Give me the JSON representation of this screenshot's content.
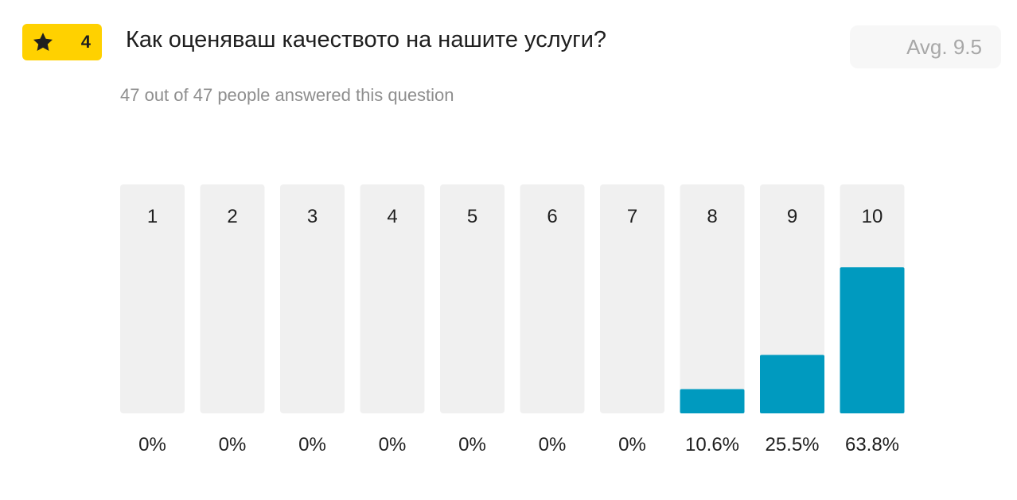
{
  "question": {
    "number": "4",
    "title": "Как оценяваш качеството на нашите услуги?",
    "avg_label": "Avg. 9.5",
    "answered_text": "47 out of 47 people answered this question"
  },
  "colors": {
    "badge": "#FFD100",
    "bar_fill": "#009ABF",
    "bar_track": "#F0F0F0"
  },
  "icons": {
    "badge_icon": "star-icon"
  },
  "chart_data": {
    "type": "bar",
    "categories": [
      "1",
      "2",
      "3",
      "4",
      "5",
      "6",
      "7",
      "8",
      "9",
      "10"
    ],
    "values": [
      0,
      0,
      0,
      0,
      0,
      0,
      0,
      10.6,
      25.5,
      63.8
    ],
    "value_labels": [
      "0%",
      "0%",
      "0%",
      "0%",
      "0%",
      "0%",
      "0%",
      "10.6%",
      "25.5%",
      "63.8%"
    ],
    "ylim": [
      0,
      100
    ],
    "grid": false,
    "legend": "none"
  }
}
